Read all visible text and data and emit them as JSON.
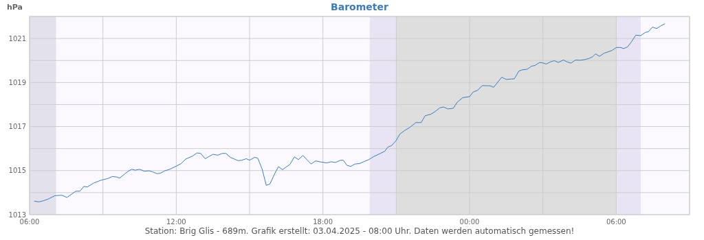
{
  "chart_data": {
    "type": "line",
    "title": "Barometer",
    "ylabel": "hPa",
    "annotations": [
      "Station: Brig Glis - 689m. Grafik erstellt: 03.04.2025 - 08:00 Uhr. Daten werden automatisch gemessen!"
    ],
    "xlim": [
      "2025-04-02T06:00",
      "2025-04-03T09:00"
    ],
    "xticks": [
      {
        "value": "2025-04-02T06:00",
        "label": "06:00"
      },
      {
        "value": "2025-04-02T09:00",
        "label": null
      },
      {
        "value": "2025-04-02T12:00",
        "label": "12:00"
      },
      {
        "value": "2025-04-02T15:00",
        "label": null
      },
      {
        "value": "2025-04-02T18:00",
        "label": "18:00"
      },
      {
        "value": "2025-04-02T21:00",
        "label": null
      },
      {
        "value": "2025-04-03T00:00",
        "label": "00:00"
      },
      {
        "value": "2025-04-03T03:00",
        "label": null
      },
      {
        "value": "2025-04-03T06:00",
        "label": "06:00"
      },
      {
        "value": "2025-04-03T09:00",
        "label": null
      }
    ],
    "ylim": [
      1013,
      1022
    ],
    "yticks": [
      1013,
      {
        "value": 1014,
        "label": null
      },
      1015,
      {
        "value": 1016,
        "label": null
      },
      1017,
      {
        "value": 1018,
        "label": null
      },
      1019,
      {
        "value": 1020,
        "label": null
      },
      1021,
      {
        "value": 1022,
        "label": null
      }
    ],
    "grid": true,
    "bands": [
      {
        "axis": "x",
        "from": "2025-04-02T06:00",
        "to": "2025-04-02T07:05",
        "color": "#e3e1eb"
      },
      {
        "axis": "x",
        "from": "2025-04-02T19:55",
        "to": "2025-04-02T21:00",
        "color": "#e8e4f4"
      },
      {
        "axis": "x",
        "from": "2025-04-02T21:00",
        "to": "2025-04-03T06:00",
        "color": "#dedede"
      },
      {
        "axis": "x",
        "from": "2025-04-03T06:00",
        "to": "2025-04-03T07:00",
        "color": "#e8e4f4"
      }
    ],
    "x": [
      "2025-04-02T06:12",
      "2025-04-02T06:23",
      "2025-04-02T06:34",
      "2025-04-02T06:46",
      "2025-04-02T07:02",
      "2025-04-02T07:19",
      "2025-04-02T07:32",
      "2025-04-02T07:53",
      "2025-04-02T08:04",
      "2025-04-02T08:13",
      "2025-04-02T08:22",
      "2025-04-02T08:38",
      "2025-04-02T08:55",
      "2025-04-02T09:12",
      "2025-04-02T09:23",
      "2025-04-02T09:34",
      "2025-04-02T09:41",
      "2025-04-02T10:02",
      "2025-04-02T10:11",
      "2025-04-02T10:19",
      "2025-04-02T10:30",
      "2025-04-02T10:42",
      "2025-04-02T10:53",
      "2025-04-02T11:01",
      "2025-04-02T11:13",
      "2025-04-02T11:21",
      "2025-04-02T11:32",
      "2025-04-02T11:44",
      "2025-04-02T12:00",
      "2025-04-02T12:12",
      "2025-04-02T12:23",
      "2025-04-02T12:40",
      "2025-04-02T12:51",
      "2025-04-02T13:00",
      "2025-04-02T13:11",
      "2025-04-02T13:30",
      "2025-04-02T13:42",
      "2025-04-02T13:53",
      "2025-04-02T14:02",
      "2025-04-02T14:13",
      "2025-04-02T14:32",
      "2025-04-02T14:41",
      "2025-04-02T14:52",
      "2025-04-02T15:00",
      "2025-04-02T15:12",
      "2025-04-02T15:20",
      "2025-04-02T15:31",
      "2025-04-02T15:41",
      "2025-04-02T15:50",
      "2025-04-02T16:02",
      "2025-04-02T16:11",
      "2025-04-02T16:21",
      "2025-04-02T16:28",
      "2025-04-02T16:39",
      "2025-04-02T16:50",
      "2025-04-02T17:00",
      "2025-04-02T17:11",
      "2025-04-02T17:22",
      "2025-04-02T17:31",
      "2025-04-02T17:42",
      "2025-04-02T17:55",
      "2025-04-02T18:09",
      "2025-04-02T18:20",
      "2025-04-02T18:31",
      "2025-04-02T18:43",
      "2025-04-02T18:50",
      "2025-04-02T18:59",
      "2025-04-02T19:08",
      "2025-04-02T19:19",
      "2025-04-02T19:30",
      "2025-04-02T19:41",
      "2025-04-02T19:53",
      "2025-04-02T20:04",
      "2025-04-02T20:21",
      "2025-04-02T20:32",
      "2025-04-02T20:39",
      "2025-04-02T20:49",
      "2025-04-02T21:00",
      "2025-04-02T21:09",
      "2025-04-02T21:20",
      "2025-04-02T21:34",
      "2025-04-02T21:48",
      "2025-04-02T22:01",
      "2025-04-02T22:11",
      "2025-04-02T22:25",
      "2025-04-02T22:36",
      "2025-04-02T22:47",
      "2025-04-02T22:56",
      "2025-04-02T23:07",
      "2025-04-02T23:20",
      "2025-04-02T23:30",
      "2025-04-02T23:43",
      "2025-04-03T00:00",
      "2025-04-03T00:09",
      "2025-04-03T00:20",
      "2025-04-03T00:31",
      "2025-04-03T00:51",
      "2025-04-03T00:59",
      "2025-04-03T01:19",
      "2025-04-03T01:30",
      "2025-04-03T01:50",
      "2025-04-03T02:01",
      "2025-04-03T02:10",
      "2025-04-03T02:21",
      "2025-04-03T02:32",
      "2025-04-03T02:41",
      "2025-04-03T02:52",
      "2025-04-03T03:00",
      "2025-04-03T03:08",
      "2025-04-03T03:20",
      "2025-04-03T03:28",
      "2025-04-03T03:38",
      "2025-04-03T03:50",
      "2025-04-03T03:59",
      "2025-04-03T04:09",
      "2025-04-03T04:20",
      "2025-04-03T04:31",
      "2025-04-03T04:42",
      "2025-04-03T04:53",
      "2025-04-03T05:02",
      "2025-04-03T05:09",
      "2025-04-03T05:19",
      "2025-04-03T05:30",
      "2025-04-03T05:41",
      "2025-04-03T05:50",
      "2025-04-03T06:00",
      "2025-04-03T06:11",
      "2025-04-03T06:18",
      "2025-04-03T06:28",
      "2025-04-03T06:37",
      "2025-04-03T06:48",
      "2025-04-03T07:00",
      "2025-04-03T07:11",
      "2025-04-03T07:19",
      "2025-04-03T07:29",
      "2025-04-03T07:39",
      "2025-04-03T07:50",
      "2025-04-03T07:59"
    ],
    "series": [
      {
        "color": "#3a7ebf",
        "values": [
          1013.61,
          1013.58,
          1013.63,
          1013.71,
          1013.86,
          1013.88,
          1013.78,
          1014.06,
          1014.07,
          1014.28,
          1014.26,
          1014.44,
          1014.56,
          1014.64,
          1014.73,
          1014.71,
          1014.66,
          1014.97,
          1015.06,
          1015.02,
          1015.06,
          1014.97,
          1014.99,
          1014.95,
          1014.86,
          1014.88,
          1014.99,
          1015.06,
          1015.2,
          1015.32,
          1015.52,
          1015.66,
          1015.8,
          1015.78,
          1015.54,
          1015.74,
          1015.7,
          1015.78,
          1015.78,
          1015.6,
          1015.45,
          1015.47,
          1015.54,
          1015.47,
          1015.6,
          1015.57,
          1015.06,
          1014.33,
          1014.39,
          1014.87,
          1015.18,
          1015.04,
          1015.14,
          1015.28,
          1015.62,
          1015.5,
          1015.69,
          1015.47,
          1015.3,
          1015.44,
          1015.39,
          1015.35,
          1015.4,
          1015.37,
          1015.47,
          1015.47,
          1015.24,
          1015.19,
          1015.3,
          1015.32,
          1015.41,
          1015.5,
          1015.63,
          1015.78,
          1015.88,
          1016.06,
          1016.14,
          1016.37,
          1016.66,
          1016.81,
          1016.97,
          1017.18,
          1017.18,
          1017.49,
          1017.56,
          1017.69,
          1017.85,
          1017.89,
          1017.8,
          1017.83,
          1018.11,
          1018.31,
          1018.36,
          1018.57,
          1018.65,
          1018.86,
          1018.85,
          1018.78,
          1019.24,
          1019.14,
          1019.17,
          1019.52,
          1019.58,
          1019.6,
          1019.74,
          1019.78,
          1019.91,
          1019.89,
          1019.84,
          1019.95,
          1019.99,
          1019.91,
          1020.02,
          1019.94,
          1019.88,
          1020.02,
          1020.01,
          1020.04,
          1020.09,
          1020.17,
          1020.3,
          1020.19,
          1020.33,
          1020.4,
          1020.46,
          1020.59,
          1020.59,
          1020.54,
          1020.62,
          1020.84,
          1021.15,
          1021.13,
          1021.27,
          1021.31,
          1021.52,
          1021.45,
          1021.58,
          1021.66
        ]
      }
    ]
  }
}
